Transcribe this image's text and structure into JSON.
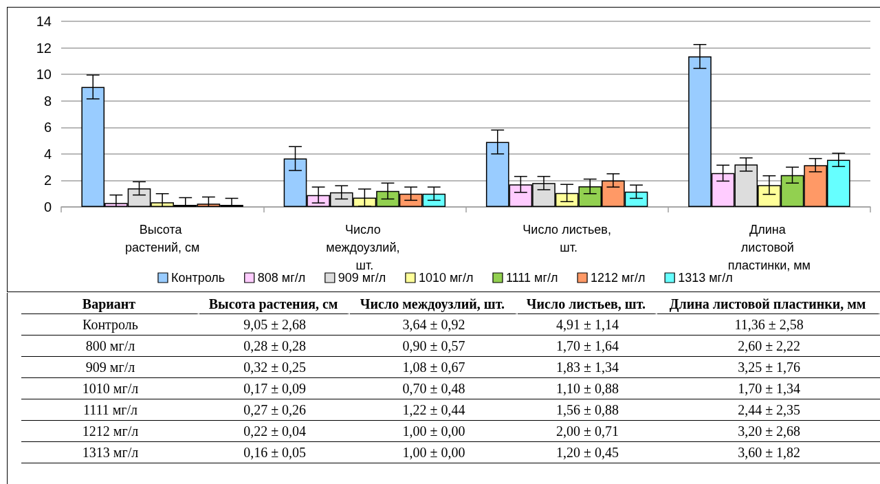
{
  "chart_data": [
    {
      "type": "bar",
      "categories": [
        "Высота растений, см",
        "Число междоузлий, шт.",
        "Число листьев, шт.",
        "Длина листовой пластинки, мм"
      ],
      "series": [
        {
          "name": "Контроль",
          "color": "#99ccff",
          "values": [
            9.05,
            3.65,
            4.9,
            11.35
          ],
          "errors": [
            0.9,
            0.9,
            0.9,
            0.9
          ]
        },
        {
          "name": "808 мг/л",
          "color": "#ffccff",
          "values": [
            0.3,
            0.9,
            1.7,
            2.55
          ],
          "errors": [
            0.6,
            0.6,
            0.6,
            0.6
          ]
        },
        {
          "name": "909 мг/л",
          "color": "#dddddd",
          "values": [
            1.4,
            1.1,
            1.8,
            3.2
          ],
          "errors": [
            0.5,
            0.5,
            0.5,
            0.5
          ]
        },
        {
          "name": "1010 мг/л",
          "color": "#ffff99",
          "values": [
            0.35,
            0.7,
            1.05,
            1.65
          ],
          "errors": [
            0.65,
            0.65,
            0.65,
            0.7
          ]
        },
        {
          "name": "1111 мг/л",
          "color": "#92d050",
          "values": [
            0.15,
            1.2,
            1.55,
            2.4
          ],
          "errors": [
            0.55,
            0.6,
            0.55,
            0.6
          ]
        },
        {
          "name": "1212 мг/л",
          "color": "#ff9966",
          "values": [
            0.25,
            1.0,
            2.0,
            3.15
          ],
          "errors": [
            0.5,
            0.5,
            0.5,
            0.5
          ]
        },
        {
          "name": "1313 мг/л",
          "color": "#66ffff",
          "values": [
            0.15,
            1.0,
            1.15,
            3.55
          ],
          "errors": [
            0.5,
            0.5,
            0.5,
            0.5
          ]
        }
      ],
      "ylim": [
        0,
        14
      ],
      "yticks": [
        0,
        2,
        4,
        6,
        8,
        10,
        12,
        14
      ],
      "grid": "y",
      "legend": "bottom"
    },
    {
      "type": "other",
      "ylabel": "Вариант",
      "categories": [
        "Высота растения, см",
        "Число междоузлий, шт.",
        "Число листьев, шт.",
        "Длина листовой пластинки, мм"
      ],
      "y_categories": [
        "Контроль",
        "800 мг/л",
        "909 мг/л",
        "1010 мг/л",
        "1111 мг/л",
        "1212 мг/л",
        "1313 мг/л"
      ],
      "cell_labels": [
        [
          "9,05 ± 2,68",
          "3,64 ± 0,92",
          "4,91 ± 1,14",
          "11,36 ± 2,58"
        ],
        [
          "0,28 ± 0,28",
          "0,90 ± 0,57",
          "1,70 ± 1,64",
          "2,60 ± 2,22"
        ],
        [
          "0,32 ± 0,25",
          "1,08 ± 0,67",
          "1,83 ± 1,34",
          "3,25 ± 1,76"
        ],
        [
          "0,17 ± 0,09",
          "0,70 ± 0,48",
          "1,10 ± 0,88",
          "1,70 ± 1,34"
        ],
        [
          "0,27 ± 0,26",
          "1,22 ± 0,44",
          "1,56 ± 0,88",
          "2,44 ± 2,35"
        ],
        [
          "0,22 ± 0,04",
          "1,00 ± 0,00",
          "2,00 ± 0,71",
          "3,20 ± 2,68"
        ],
        [
          "0,16 ± 0,05",
          "1,00 ± 0,00",
          "1,20 ± 0,45",
          "3,60 ± 1,82"
        ]
      ]
    }
  ]
}
